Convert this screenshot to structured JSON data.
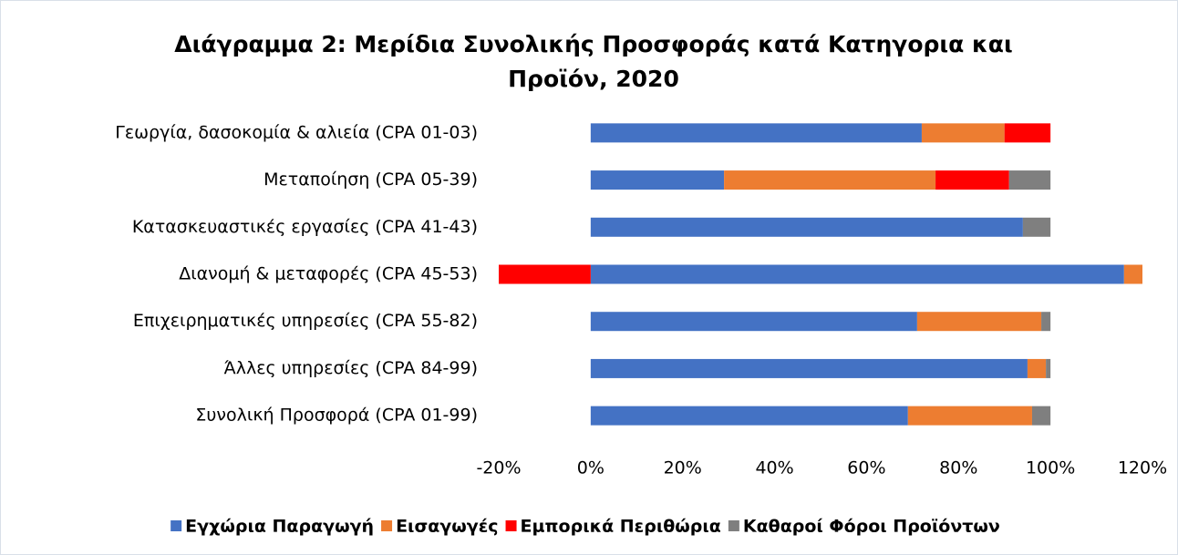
{
  "chart_data": {
    "type": "stacked_bar_horizontal",
    "title": "Διάγραμμα 2: Μερίδια Συνολικής Προσφοράς κατά Κατηγορια και Προϊόν, 2020",
    "categories": [
      "Γεωργία, δασοκομία & αλιεία (CPA 01-03)",
      "Μεταποίηση (CPA 05-39)",
      "Κατασκευαστικές εργασίες (CPA 41-43)",
      "Διανομή & μεταφορές (CPA 45-53)",
      "Επιχειρηματικές υπηρεσίες (CPA 55-82)",
      "Άλλες υπηρεσίες (CPA 84-99)",
      "Συνολική Προσφορά (CPA 01-99)"
    ],
    "series": [
      {
        "name": "Εγχώρια Παραγωγή",
        "color": "#4472c4",
        "values": [
          72,
          29,
          94,
          116,
          71,
          95,
          69
        ]
      },
      {
        "name": "Εισαγωγές",
        "color": "#ed7d31",
        "values": [
          18,
          46,
          0,
          4,
          27,
          4,
          27
        ]
      },
      {
        "name": "Εμπορικά Περιθώρια",
        "color": "#ff0000",
        "values": [
          10,
          16,
          0,
          -20,
          0,
          0,
          0
        ]
      },
      {
        "name": "Καθαροί Φόροι Προϊόντων",
        "color": "#7f7f7f",
        "values": [
          0,
          9,
          6,
          0,
          2,
          1,
          4
        ]
      }
    ],
    "xlim": [
      -20,
      120
    ],
    "xticks": [
      {
        "value": -20,
        "label": "-20%"
      },
      {
        "value": 0,
        "label": "0%"
      },
      {
        "value": 20,
        "label": "20%"
      },
      {
        "value": 40,
        "label": "40%"
      },
      {
        "value": 60,
        "label": "60%"
      },
      {
        "value": 80,
        "label": "80%"
      },
      {
        "value": 100,
        "label": "100%"
      },
      {
        "value": 120,
        "label": "120%"
      }
    ],
    "grid": false,
    "legend": "bottom"
  }
}
